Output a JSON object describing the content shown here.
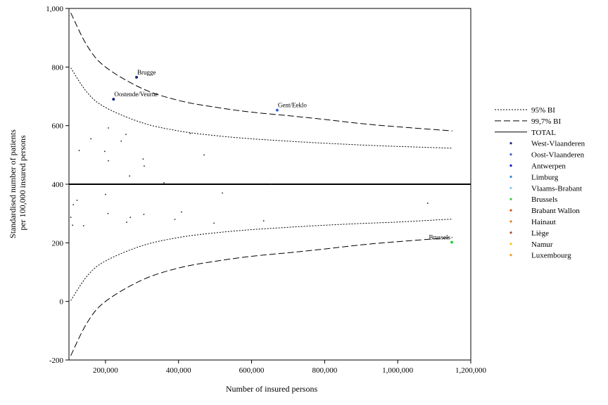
{
  "chart_data": {
    "type": "scatter",
    "title": "",
    "xlabel": "Number of insured persons",
    "ylabel_lines": [
      "Standardised number of patients",
      "per 100,000 insured persons"
    ],
    "xlim": [
      100000,
      1200000
    ],
    "ylim": [
      -200,
      1000
    ],
    "x_ticks": [
      200000,
      400000,
      600000,
      800000,
      1000000,
      1200000
    ],
    "x_tick_labels": [
      "200,000",
      "400,000",
      "600,000",
      "800,000",
      "1,000,000",
      "1,200,000"
    ],
    "y_ticks": [
      -200,
      0,
      200,
      400,
      600,
      800,
      1000
    ],
    "y_tick_labels": [
      "-200",
      "0",
      "200",
      "400",
      "600",
      "800",
      "1,000"
    ],
    "grid": false,
    "legend_position": "right",
    "total_value": 400,
    "lines": [
      {
        "name": "95% BI",
        "style": "dotted",
        "color": "#000000",
        "upper": [
          [
            105000,
            797
          ],
          [
            150000,
            713
          ],
          [
            200000,
            662
          ],
          [
            300000,
            610
          ],
          [
            400000,
            582
          ],
          [
            500000,
            566
          ],
          [
            600000,
            555
          ],
          [
            700000,
            547
          ],
          [
            800000,
            540
          ],
          [
            900000,
            534
          ],
          [
            1000000,
            529
          ],
          [
            1150000,
            523
          ]
        ],
        "lower": [
          [
            105000,
            3
          ],
          [
            150000,
            87
          ],
          [
            200000,
            138
          ],
          [
            300000,
            190
          ],
          [
            400000,
            218
          ],
          [
            500000,
            234
          ],
          [
            600000,
            245
          ],
          [
            700000,
            253
          ],
          [
            800000,
            260
          ],
          [
            900000,
            266
          ],
          [
            1000000,
            271
          ],
          [
            1150000,
            281
          ]
        ]
      },
      {
        "name": "99,7% BI",
        "style": "dashed",
        "color": "#000000",
        "upper": [
          [
            105000,
            985
          ],
          [
            150000,
            872
          ],
          [
            200000,
            800
          ],
          [
            300000,
            727
          ],
          [
            400000,
            686
          ],
          [
            500000,
            663
          ],
          [
            600000,
            646
          ],
          [
            700000,
            634
          ],
          [
            800000,
            621
          ],
          [
            900000,
            607
          ],
          [
            1000000,
            596
          ],
          [
            1150000,
            582
          ]
        ],
        "lower": [
          [
            105000,
            -185
          ],
          [
            150000,
            -72
          ],
          [
            200000,
            0
          ],
          [
            300000,
            73
          ],
          [
            400000,
            114
          ],
          [
            500000,
            137
          ],
          [
            600000,
            154
          ],
          [
            700000,
            166
          ],
          [
            800000,
            179
          ],
          [
            900000,
            193
          ],
          [
            1000000,
            204
          ],
          [
            1150000,
            218
          ]
        ]
      },
      {
        "name": "TOTAL",
        "style": "solid",
        "color": "#000000"
      }
    ],
    "series": [
      {
        "name": "West-Vlaanderen",
        "color": "#1a237e",
        "points": [
          {
            "x": 285000,
            "y": 765,
            "label": "Brugge"
          },
          {
            "x": 222000,
            "y": 690,
            "label": "Oostende/Veurne"
          }
        ]
      },
      {
        "name": "Oost-Vlaanderen",
        "color": "#3f5fcf",
        "points": [
          {
            "x": 670000,
            "y": 653,
            "label": "Gent/Eeklo"
          }
        ]
      },
      {
        "name": "Antwerpen",
        "color": "#1010d0",
        "points": []
      },
      {
        "name": "Limburg",
        "color": "#2e86de",
        "points": []
      },
      {
        "name": "Vlaams-Brabant",
        "color": "#7ec8f0",
        "points": []
      },
      {
        "name": "Brussels",
        "color": "#2ecc40",
        "points": [
          {
            "x": 1148000,
            "y": 202,
            "label": "Brussels"
          }
        ]
      },
      {
        "name": "Brabant Wallon",
        "color": "#d35400",
        "points": []
      },
      {
        "name": "Hainaut",
        "color": "#e67e22",
        "points": []
      },
      {
        "name": "Liège",
        "color": "#a0522d",
        "points": []
      },
      {
        "name": "Namur",
        "color": "#f1c40f",
        "points": []
      },
      {
        "name": "Luxembourg",
        "color": "#f39c12",
        "points": []
      }
    ],
    "minor_points": [
      [
        128000,
        515
      ],
      [
        160000,
        555
      ],
      [
        208000,
        592
      ],
      [
        198000,
        512
      ],
      [
        208000,
        480
      ],
      [
        243000,
        547
      ],
      [
        256000,
        570
      ],
      [
        266000,
        428
      ],
      [
        303000,
        486
      ],
      [
        306000,
        462
      ],
      [
        360000,
        405
      ],
      [
        432000,
        573
      ],
      [
        470000,
        500
      ],
      [
        655000,
        400
      ],
      [
        105000,
        287
      ],
      [
        110000,
        260
      ],
      [
        112000,
        330
      ],
      [
        122000,
        345
      ],
      [
        140000,
        258
      ],
      [
        200000,
        365
      ],
      [
        207000,
        300
      ],
      [
        258000,
        270
      ],
      [
        268000,
        287
      ],
      [
        305000,
        297
      ],
      [
        390000,
        280
      ],
      [
        408000,
        305
      ],
      [
        497000,
        267
      ],
      [
        520000,
        370
      ],
      [
        633000,
        275
      ],
      [
        1082000,
        335
      ]
    ]
  }
}
